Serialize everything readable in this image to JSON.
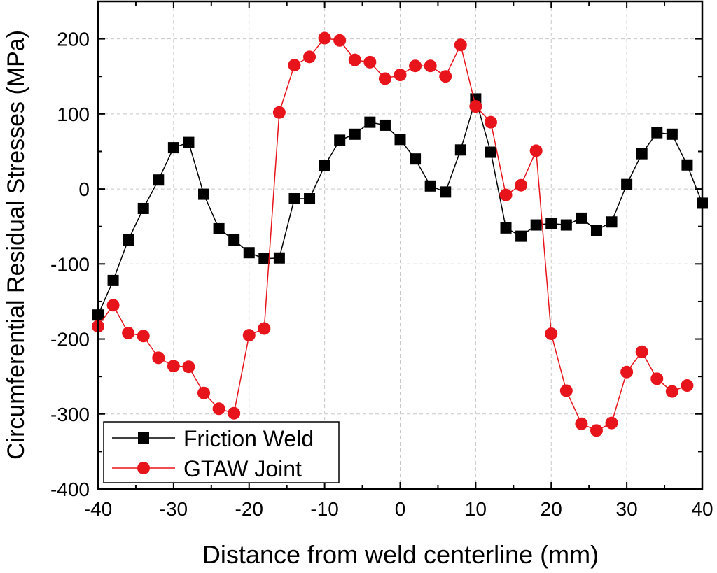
{
  "chart_data": {
    "type": "line",
    "title": "",
    "xlabel": "Distance from weld centerline (mm)",
    "ylabel": "Circumferential Residual Stresses (MPa)",
    "xlim": [
      -40,
      40
    ],
    "ylim": [
      -400,
      250
    ],
    "xticks": [
      -40,
      -30,
      -20,
      -10,
      0,
      10,
      20,
      30,
      40
    ],
    "yticks": [
      -400,
      -300,
      -200,
      -100,
      0,
      100,
      200
    ],
    "grid": true,
    "legend_position": "bottom-left",
    "series": [
      {
        "name": "Friction Weld",
        "color": "#000000",
        "marker": "square",
        "x": [
          -40,
          -38,
          -36,
          -34,
          -32,
          -30,
          -28,
          -26,
          -24,
          -22,
          -20,
          -18,
          -16,
          -14,
          -12,
          -10,
          -8,
          -6,
          -4,
          -2,
          0,
          2,
          4,
          6,
          8,
          10,
          12,
          14,
          16,
          18,
          20,
          22,
          24,
          26,
          28,
          30,
          32,
          34,
          36,
          38,
          40
        ],
        "y": [
          -168,
          -122,
          -68,
          -26,
          12,
          55,
          62,
          -7,
          -53,
          -68,
          -85,
          -93,
          -92,
          -13,
          -13,
          31,
          65,
          73,
          89,
          85,
          66,
          40,
          4,
          -4,
          52,
          120,
          49,
          -52,
          -63,
          -48,
          -46,
          -48,
          -39,
          -55,
          -44,
          6,
          47,
          75,
          73,
          32,
          -19
        ]
      },
      {
        "name": "GTAW Joint",
        "color": "#e8141b",
        "marker": "circle",
        "x": [
          -40,
          -38,
          -36,
          -34,
          -32,
          -30,
          -28,
          -26,
          -24,
          -22,
          -20,
          -18,
          -16,
          -14,
          -12,
          -10,
          -8,
          -6,
          -4,
          -2,
          0,
          2,
          4,
          6,
          8,
          10,
          12,
          14,
          16,
          18,
          20,
          22,
          24,
          26,
          28,
          30,
          32,
          34,
          36,
          38
        ],
        "y": [
          -183,
          -155,
          -192,
          -196,
          -225,
          -236,
          -237,
          -272,
          -293,
          -299,
          -195,
          -186,
          102,
          165,
          176,
          201,
          198,
          172,
          169,
          147,
          152,
          164,
          164,
          150,
          192,
          110,
          89,
          -8,
          5,
          51,
          -193,
          -269,
          -313,
          -322,
          -312,
          -244,
          -217,
          -253,
          -270,
          -262
        ]
      }
    ]
  }
}
